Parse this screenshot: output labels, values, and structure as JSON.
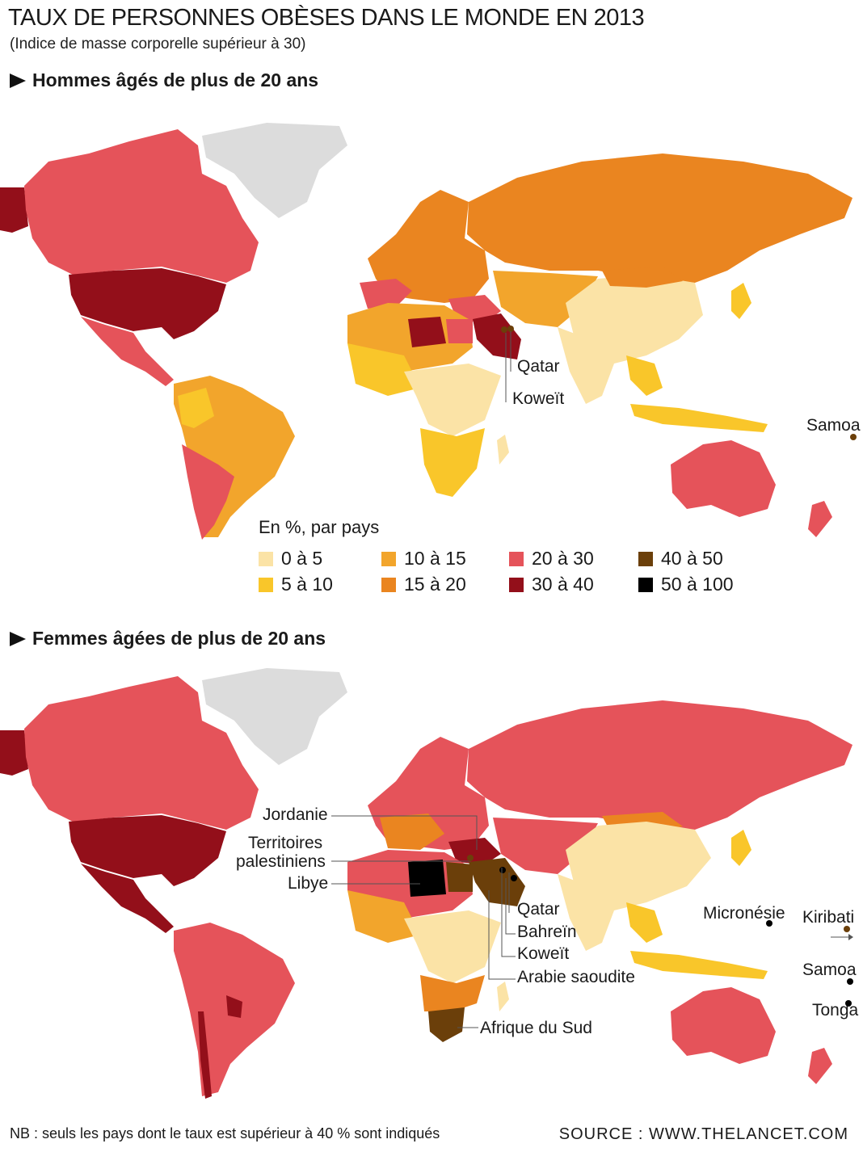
{
  "title": "TAUX DE PERSONNES OBÈSES DANS LE MONDE EN 2013",
  "subtitle": "(Indice de masse corporelle supérieur à 30)",
  "sections": {
    "men": "Hommes âgés de plus de 20 ans",
    "women": "Femmes âgées de plus de 20 ans"
  },
  "legend": {
    "title": "En %, par pays",
    "items": [
      {
        "label": "0 à 5",
        "color": "#fbe3a6"
      },
      {
        "label": "5 à 10",
        "color": "#f9c62a"
      },
      {
        "label": "10 à 15",
        "color": "#f2a52c"
      },
      {
        "label": "15 à 20",
        "color": "#ea8520"
      },
      {
        "label": "20 à 30",
        "color": "#e5535a"
      },
      {
        "label": "30 à 40",
        "color": "#930f1a"
      },
      {
        "label": "40 à 50",
        "color": "#6b3f0a"
      },
      {
        "label": "50 à 100",
        "color": "#000000"
      }
    ]
  },
  "men_callouts": [
    "Qatar",
    "Koweït",
    "Samoa"
  ],
  "women_callouts": {
    "jordanie": "Jordanie",
    "territoires_1": "Territoires",
    "territoires_2": "palestiniens",
    "libye": "Libye",
    "qatar": "Qatar",
    "bahrein": "Bahreïn",
    "koweit": "Koweït",
    "arabie": "Arabie saoudite",
    "afrique_sud": "Afrique du Sud",
    "micronesie": "Micronésie",
    "kiribati": "Kiribati",
    "samoa": "Samoa",
    "tonga": "Tonga"
  },
  "colors": {
    "no_data": "#dcdcdc",
    "c0": "#fbe3a6",
    "c5": "#f9c62a",
    "c10": "#f2a52c",
    "c15": "#ea8520",
    "c20": "#e5535a",
    "c30": "#930f1a",
    "c40": "#6b3f0a",
    "c50": "#000000"
  },
  "footer": {
    "note": "NB : seuls les pays dont le taux est supérieur à 40 % sont indiqués",
    "source": "SOURCE : WWW.THELANCET.COM"
  }
}
